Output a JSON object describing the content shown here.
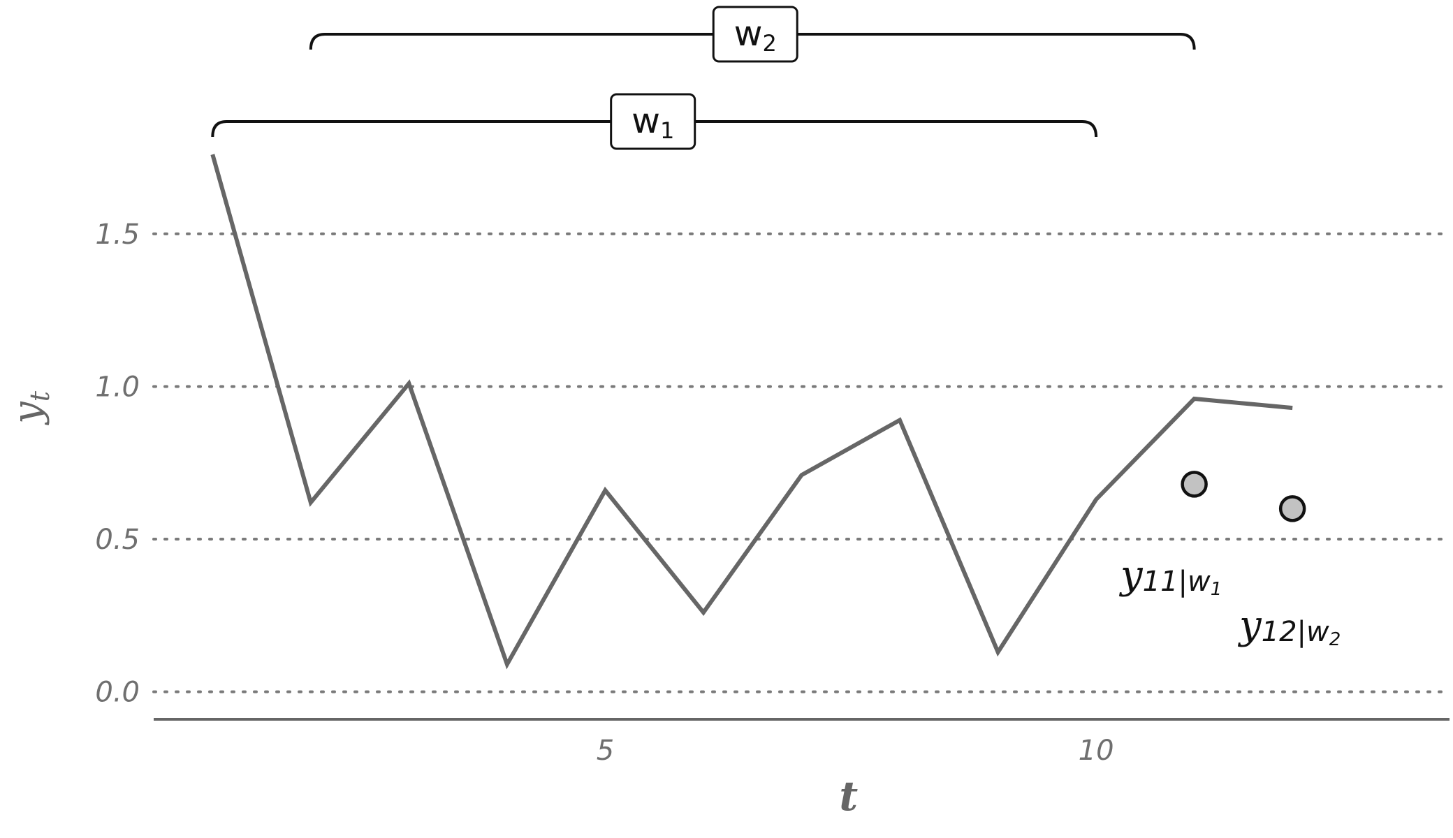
{
  "chart_data": {
    "type": "line",
    "x": [
      1,
      2,
      3,
      4,
      5,
      6,
      7,
      8,
      9,
      10,
      11,
      12
    ],
    "y": [
      1.76,
      0.62,
      1.01,
      0.09,
      0.66,
      0.26,
      0.71,
      0.89,
      0.13,
      0.63,
      0.96,
      0.93
    ],
    "points": [
      {
        "x": 11,
        "y": 0.68
      },
      {
        "x": 12,
        "y": 0.6
      }
    ],
    "xlabel": "t",
    "ylabel": "y",
    "ylabel_sub": "t",
    "xticks": [
      5,
      10
    ],
    "xtick_labels": [
      "5",
      "10"
    ],
    "yticks": [
      0.0,
      0.5,
      1.0,
      1.5
    ],
    "ytick_labels": [
      "0.0",
      "0.5",
      "1.0",
      "1.5"
    ],
    "xlim": [
      0.4,
      13.6
    ],
    "ylim": [
      -0.09,
      1.9
    ],
    "grid": "horizontal dotted",
    "windows": [
      {
        "label": "w",
        "sub": "1",
        "x_start": 1,
        "x_end": 10
      },
      {
        "label": "w",
        "sub": "2",
        "x_start": 2,
        "x_end": 11
      }
    ],
    "annotations": [
      {
        "main": "y",
        "sub": "11",
        "cond": "|w",
        "cond_sub": "1",
        "x": 11
      },
      {
        "main": "y",
        "sub": "12",
        "cond": "|w",
        "cond_sub": "2",
        "x": 12
      }
    ],
    "colors": {
      "series": "#666666",
      "point_fill": "#c2c2c2",
      "ink": "#111111"
    }
  }
}
